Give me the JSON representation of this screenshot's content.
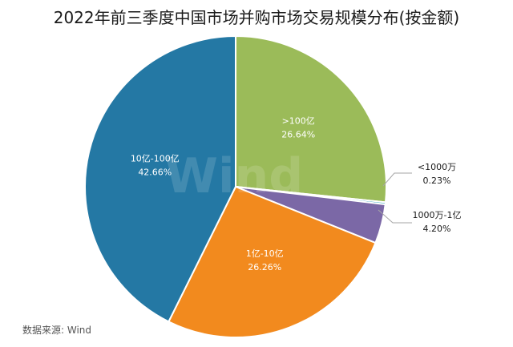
{
  "title": "2022年前三季度中国市场并购市场交易规模分布(按金额)",
  "source": "数据来源: Wind",
  "watermark": "Wind",
  "chart_data": {
    "type": "pie",
    "title": "2022年前三季度中国市场并购市场交易规模分布(按金额)",
    "start_angle_deg": 0,
    "direction": "clockwise",
    "slices": [
      {
        "label": ">100亿",
        "value": 26.64,
        "display": "26.64%",
        "color": "#9BBB59",
        "label_color": "#ffffff"
      },
      {
        "label": "<1000万",
        "value": 0.23,
        "display": "0.23%",
        "color": "#4BACC6",
        "label_color": "#1a1a1a",
        "callout": true
      },
      {
        "label": "1000万-1亿",
        "value": 4.2,
        "display": "4.20%",
        "color": "#7B68A6",
        "label_color": "#1a1a1a",
        "callout": true
      },
      {
        "label": "1亿-10亿",
        "value": 26.26,
        "display": "26.26%",
        "color": "#F28A1E",
        "label_color": "#ffffff"
      },
      {
        "label": "10亿-100亿",
        "value": 42.66,
        "display": "42.66%",
        "color": "#2478A4",
        "label_color": "#ffffff"
      }
    ]
  }
}
